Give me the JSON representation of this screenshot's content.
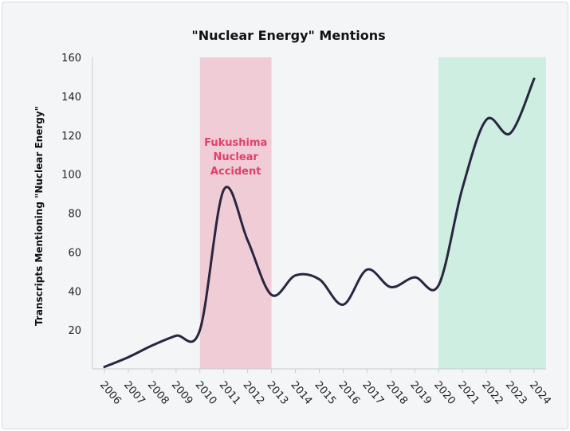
{
  "chart_data": {
    "type": "line",
    "title": "\"Nuclear Energy\" Mentions",
    "xlabel": "",
    "ylabel": "Transcripts Mentioning \"Nuclear Energy\"",
    "ylim": [
      0,
      160
    ],
    "yticks": [
      20,
      40,
      60,
      80,
      100,
      120,
      140,
      160
    ],
    "categories": [
      "2006",
      "2007",
      "2008",
      "2009",
      "2010",
      "2011",
      "2012",
      "2013",
      "2014",
      "2015",
      "2016",
      "2017",
      "2018",
      "2019",
      "2020",
      "2021",
      "2022",
      "2023",
      "2024"
    ],
    "values": [
      1,
      6,
      12,
      17,
      20,
      92,
      66,
      38,
      48,
      46,
      33,
      51,
      42,
      47,
      43,
      93,
      128,
      121,
      149
    ],
    "grid": false,
    "line_color": "#2a2540",
    "shaded_regions": [
      {
        "from": "2010",
        "to": "2013",
        "color": "#f0cdd6",
        "label": [
          "Fukushima",
          "Nuclear",
          "Accident"
        ],
        "label_color": "#e0406a"
      },
      {
        "from": "2020",
        "to": "2024",
        "color": "#cdeee0"
      }
    ]
  }
}
